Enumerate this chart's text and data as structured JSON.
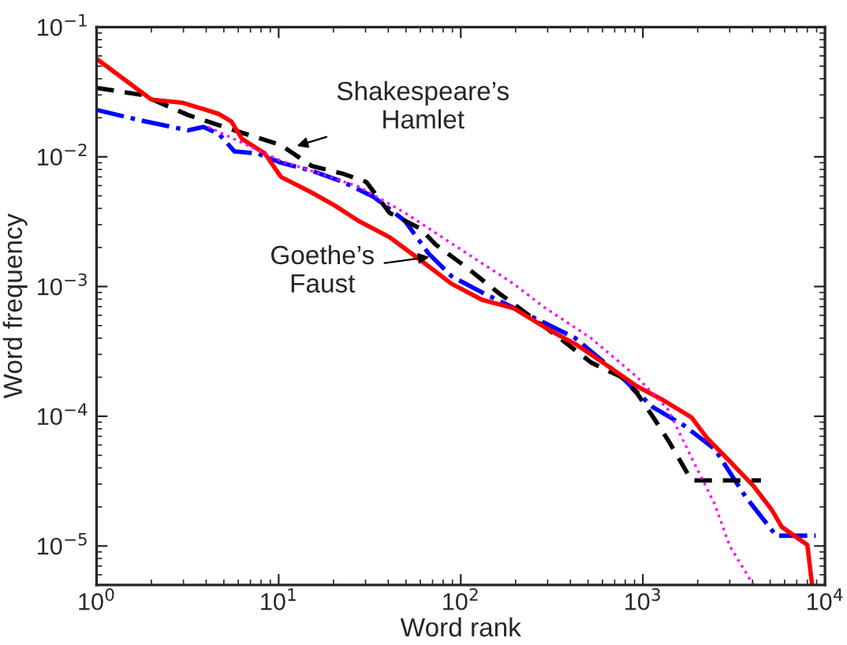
{
  "chart_data": {
    "type": "line",
    "xlabel": "Word rank",
    "ylabel": "Word frequency",
    "log": "xy",
    "grid": false,
    "legend": false,
    "xlim": [
      1,
      10000
    ],
    "ylim": [
      5e-06,
      0.1
    ],
    "xticks": [
      {
        "value": 1,
        "label": "10$^{0}$"
      },
      {
        "value": 10,
        "label": "10$^{1}$"
      },
      {
        "value": 100,
        "label": "10$^{2}$"
      },
      {
        "value": 1000,
        "label": "10$^{3}$"
      },
      {
        "value": 10000,
        "label": "10$^{4}$"
      }
    ],
    "yticks": [
      {
        "value": 1e-05,
        "label": "10$^{−5}$"
      },
      {
        "value": 0.0001,
        "label": "10$^{−4}$"
      },
      {
        "value": 0.001,
        "label": "10$^{−3}$"
      },
      {
        "value": 0.01,
        "label": "10$^{−2}$"
      },
      {
        "value": 0.1,
        "label": "10$^{−1}$"
      }
    ],
    "series": [
      {
        "color": "#0000ff",
        "line_style": "dashdot",
        "x": [
          1,
          1.77,
          3.18,
          3.87,
          4.7,
          5.72,
          7.68,
          10.3,
          15.2,
          22.6,
          33.3,
          49.4,
          66.5,
          89,
          131,
          237,
          426,
          765,
          1130,
          1680,
          2480,
          3660,
          5400,
          8900
        ],
        "values": [
          0.023,
          0.019,
          0.016,
          0.017,
          0.015,
          0.011,
          0.0106,
          0.009,
          0.0078,
          0.0064,
          0.0049,
          0.0032,
          0.0018,
          0.0012,
          0.0009,
          0.0006,
          0.0004,
          0.0002,
          0.000118,
          8.5e-05,
          5.6e-05,
          2.4e-05,
          1.2e-05,
          1.2e-05
        ]
      },
      {
        "color": "#000000",
        "line_style": "dashed",
        "x": [
          1,
          1.77,
          3.18,
          5.72,
          10.3,
          15.2,
          22.6,
          30.3,
          40.6,
          60,
          73,
          108,
          160,
          237,
          350,
          519,
          765,
          930,
          1130,
          1380,
          1850,
          4450
        ],
        "values": [
          0.034,
          0.03,
          0.021,
          0.016,
          0.0123,
          0.0085,
          0.0074,
          0.0064,
          0.0037,
          0.0028,
          0.0021,
          0.0014,
          0.0009,
          0.0006,
          0.0004,
          0.00026,
          0.0002,
          0.00015,
          0.0001,
          6.5e-05,
          3.2e-05,
          3.2e-05
        ]
      },
      {
        "color": "#ff0000",
        "line_style": "solid",
        "x": [
          1,
          2.0,
          3.0,
          4.7,
          5.5,
          6.3,
          8.4,
          10.3,
          15.2,
          20.4,
          27.5,
          40.6,
          60,
          89,
          131,
          195,
          317,
          426,
          519,
          930,
          1270,
          1850,
          2250,
          3000,
          4050,
          5100,
          5800,
          8000,
          8500
        ],
        "values": [
          0.057,
          0.0276,
          0.026,
          0.0214,
          0.0187,
          0.0137,
          0.0106,
          0.007,
          0.0053,
          0.0042,
          0.0032,
          0.0024,
          0.0016,
          0.00105,
          0.00079,
          0.00068,
          0.00045,
          0.00036,
          0.0003,
          0.00017,
          0.000135,
          9.8e-05,
          6.8e-05,
          4.5e-05,
          2.9e-05,
          1.9e-05,
          1.4e-05,
          1.02e-05,
          5e-06
        ]
      },
      {
        "color": "#ff00ff",
        "line_style": "dotted",
        "x": [
          4.1,
          10.3,
          27.5,
          49.4,
          108,
          195,
          288,
          519,
          930,
          1380,
          1850,
          2480,
          3000,
          4050
        ],
        "values": [
          0.017,
          0.0093,
          0.0059,
          0.0037,
          0.0018,
          0.00105,
          0.00069,
          0.0004,
          0.0002,
          0.000112,
          4.8e-05,
          2.1e-05,
          1e-05,
          5e-06
        ]
      }
    ],
    "annotations": [
      "Shakespeare’s\nHamlet",
      "Goethe’s\nFaust"
    ]
  }
}
